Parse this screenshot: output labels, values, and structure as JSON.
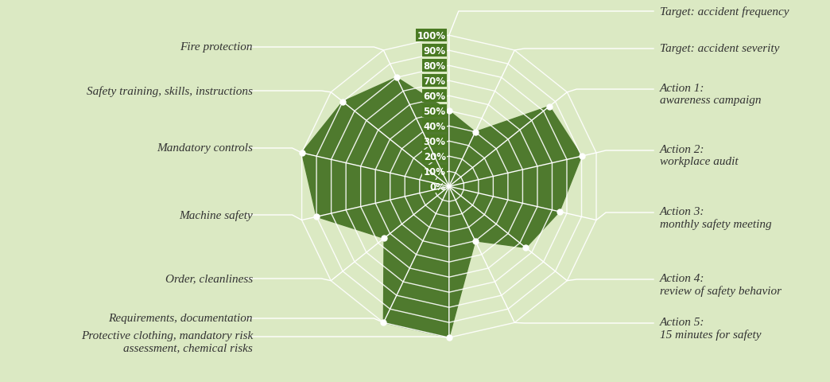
{
  "chart_data": {
    "type": "radar",
    "categories": [
      "Target: accident frequency",
      "Target: accident severity",
      "Action 1:\nawareness campaign",
      "Action 2:\nworkplace audit",
      "Action 3:\nmonthly safety meeting",
      "Action 4:\nreview of safety behavior",
      "Action 5:\n15 minutes for safety",
      "Protective clothing, mandatory risk\nassessment, chemical risks",
      "Requirements, documentation",
      "Order, cleanliness",
      "Machine safety",
      "Mandatory controls",
      "Safety training, skills, instructions",
      "Fire protection"
    ],
    "values": [
      50,
      40,
      85,
      90,
      75,
      65,
      40,
      100,
      100,
      55,
      90,
      100,
      90,
      80
    ],
    "ylim": [
      0,
      100
    ],
    "yticks": [
      {
        "value": 0,
        "label": "0%"
      },
      {
        "value": 10,
        "label": "10%"
      },
      {
        "value": 20,
        "label": "20%"
      },
      {
        "value": 30,
        "label": "30%"
      },
      {
        "value": 40,
        "label": "40%"
      },
      {
        "value": 50,
        "label": "50%"
      },
      {
        "value": 60,
        "label": "60%"
      },
      {
        "value": 70,
        "label": "70%"
      },
      {
        "value": 80,
        "label": "80%"
      },
      {
        "value": 90,
        "label": "90%"
      },
      {
        "value": 100,
        "label": "100%"
      }
    ],
    "grid": true,
    "color": "#4f7a2e",
    "marker": "o"
  }
}
